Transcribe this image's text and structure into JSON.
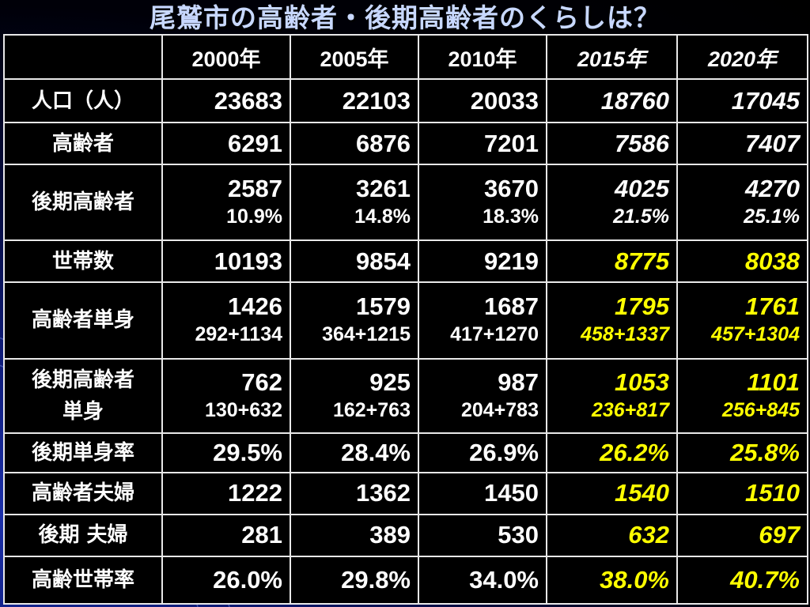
{
  "title": "尾鷲市の高齢者・後期高齢者のくらしは？",
  "table": {
    "corner": "",
    "years": [
      "2000年",
      "2005年",
      "2010年",
      "2015年",
      "2020年"
    ],
    "rows": [
      {
        "label": "人口（人）",
        "cells": [
          {
            "main": "23683"
          },
          {
            "main": "22103"
          },
          {
            "main": "20033"
          },
          {
            "main": "18760"
          },
          {
            "main": "17045"
          }
        ]
      },
      {
        "label": "高齢者",
        "cells": [
          {
            "main": "6291"
          },
          {
            "main": "6876"
          },
          {
            "main": "7201"
          },
          {
            "main": "7586"
          },
          {
            "main": "7407"
          }
        ]
      },
      {
        "label": "後期高齢者",
        "cells": [
          {
            "main": "2587",
            "sub": "10.9%"
          },
          {
            "main": "3261",
            "sub": "14.8%"
          },
          {
            "main": "3670",
            "sub": "18.3%"
          },
          {
            "main": "4025",
            "sub": "21.5%"
          },
          {
            "main": "4270",
            "sub": "25.1%"
          }
        ]
      },
      {
        "label": "世帯数",
        "cells": [
          {
            "main": "10193"
          },
          {
            "main": "9854"
          },
          {
            "main": "9219"
          },
          {
            "main": "8775"
          },
          {
            "main": "8038"
          }
        ]
      },
      {
        "label": "高齢者単身",
        "cells": [
          {
            "main": "1426",
            "sub": "292+1134"
          },
          {
            "main": "1579",
            "sub": "364+1215"
          },
          {
            "main": "1687",
            "sub": "417+1270"
          },
          {
            "main": "1795",
            "sub": "458+1337"
          },
          {
            "main": "1761",
            "sub": "457+1304"
          }
        ]
      },
      {
        "label_lines": [
          "後期高齢者",
          "単身"
        ],
        "cells": [
          {
            "main": "762",
            "sub": "130+632"
          },
          {
            "main": "925",
            "sub": "162+763"
          },
          {
            "main": "987",
            "sub": "204+783"
          },
          {
            "main": "1053",
            "sub": "236+817"
          },
          {
            "main": "1101",
            "sub": "256+845"
          }
        ]
      },
      {
        "label": "後期単身率",
        "cells": [
          {
            "main": "29.5%"
          },
          {
            "main": "28.4%"
          },
          {
            "main": "26.9%"
          },
          {
            "main": "26.2%"
          },
          {
            "main": "25.8%"
          }
        ]
      },
      {
        "label": "高齢者夫婦",
        "cells": [
          {
            "main": "1222"
          },
          {
            "main": "1362"
          },
          {
            "main": "1450"
          },
          {
            "main": "1540"
          },
          {
            "main": "1510"
          }
        ]
      },
      {
        "label": "後期 夫婦",
        "cells": [
          {
            "main": "281"
          },
          {
            "main": "389"
          },
          {
            "main": "530"
          },
          {
            "main": "632"
          },
          {
            "main": "697"
          }
        ]
      },
      {
        "label": "高齢世帯率",
        "cells": [
          {
            "main": "26.0%"
          },
          {
            "main": "29.8%"
          },
          {
            "main": "34.0%"
          },
          {
            "main": "38.0%"
          },
          {
            "main": "40.7%"
          }
        ]
      }
    ]
  },
  "colors": {
    "title": "#c8d8ff",
    "highlight": "#ffff00",
    "text": "#ffffff",
    "border": "#e8e8e8",
    "background_accent": "#1b2fa8"
  }
}
